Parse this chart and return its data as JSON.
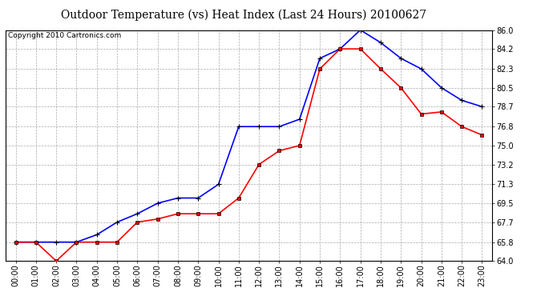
{
  "title": "Outdoor Temperature (vs) Heat Index (Last 24 Hours) 20100627",
  "copyright": "Copyright 2010 Cartronics.com",
  "x_labels": [
    "00:00",
    "01:00",
    "02:00",
    "03:00",
    "04:00",
    "05:00",
    "06:00",
    "07:00",
    "08:00",
    "09:00",
    "10:00",
    "11:00",
    "12:00",
    "13:00",
    "14:00",
    "15:00",
    "16:00",
    "17:00",
    "18:00",
    "19:00",
    "20:00",
    "21:00",
    "22:00",
    "23:00"
  ],
  "blue_data": [
    65.8,
    65.8,
    65.8,
    65.8,
    66.5,
    67.7,
    68.5,
    69.5,
    70.0,
    70.0,
    71.3,
    76.8,
    76.8,
    76.8,
    77.5,
    83.3,
    84.2,
    86.0,
    84.8,
    83.3,
    82.3,
    80.5,
    79.3,
    78.7
  ],
  "red_data": [
    65.8,
    65.8,
    64.0,
    65.8,
    65.8,
    65.8,
    67.7,
    68.0,
    68.5,
    68.5,
    68.5,
    70.0,
    73.2,
    74.5,
    75.0,
    82.3,
    84.2,
    84.2,
    82.3,
    80.5,
    78.0,
    78.2,
    76.8,
    76.0
  ],
  "blue_color": "#0000FF",
  "red_color": "#FF0000",
  "marker_color": "#000000",
  "bg_color": "#FFFFFF",
  "grid_color": "#AAAAAA",
  "ylim_min": 64.0,
  "ylim_max": 86.0,
  "yticks": [
    64.0,
    65.8,
    67.7,
    69.5,
    71.3,
    73.2,
    75.0,
    76.8,
    78.7,
    80.5,
    82.3,
    84.2,
    86.0
  ],
  "ytick_labels": [
    "64.0",
    "65.8",
    "67.7",
    "69.5",
    "71.3",
    "73.2",
    "75.0",
    "76.8",
    "78.7",
    "80.5",
    "82.3",
    "84.2",
    "86.0"
  ],
  "title_fontsize": 10,
  "copyright_fontsize": 6.5,
  "tick_fontsize": 7
}
